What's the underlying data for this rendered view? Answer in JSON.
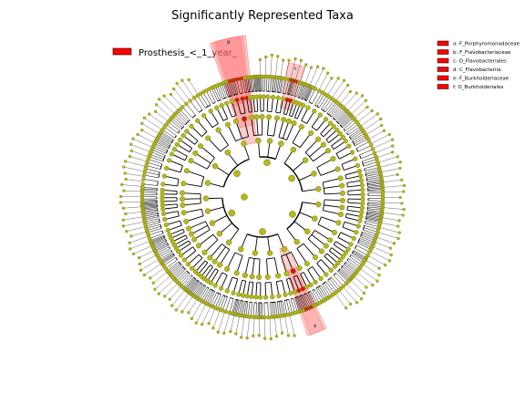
{
  "figure": {
    "title": "Significantly Represented Taxa",
    "colors": {
      "node": "#b5b820",
      "node_stroke": "#7d7f10",
      "highlight_node": "#e01010",
      "highlight_sector": "#ff6a6a",
      "edge": "#000000",
      "background": "#ffffff"
    },
    "group_legend": {
      "label": "Prosthesis_<_1_year_",
      "color": "#ff0000"
    },
    "clade_legend": [
      {
        "letter": "a",
        "label": "a: F_Porphyromonadaceae"
      },
      {
        "letter": "b",
        "label": "b: F_Flavobacteriaceae"
      },
      {
        "letter": "c",
        "label": "c: O_Flavobacteriales"
      },
      {
        "letter": "d",
        "label": "d: C_Flavobacteriia"
      },
      {
        "letter": "e",
        "label": "e: F_Burkholderiaceae"
      },
      {
        "letter": "f",
        "label": "f: O_Burkholderiales"
      }
    ]
  }
}
